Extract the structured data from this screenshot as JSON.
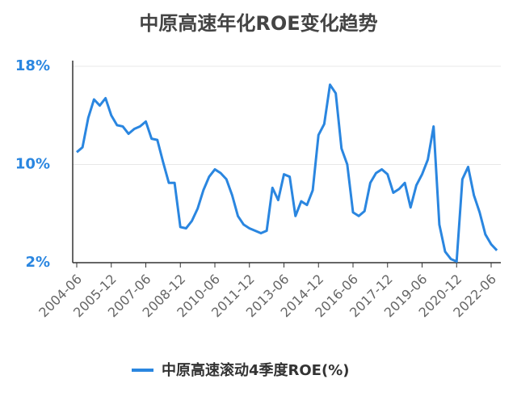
{
  "chart_data": {
    "type": "line",
    "title": "中原高速年化ROE变化趋势",
    "categories": [
      "2004-06",
      null,
      null,
      null,
      null,
      null,
      "2005-12",
      null,
      null,
      null,
      null,
      null,
      "2007-06",
      null,
      null,
      null,
      null,
      null,
      "2008-12",
      null,
      null,
      null,
      null,
      null,
      "2010-06",
      null,
      null,
      null,
      null,
      null,
      "2011-12",
      null,
      null,
      null,
      null,
      null,
      "2013-06",
      null,
      null,
      null,
      null,
      null,
      "2014-12",
      null,
      null,
      null,
      null,
      null,
      "2016-06",
      null,
      null,
      null,
      null,
      null,
      "2017-12",
      null,
      null,
      null,
      null,
      null,
      "2019-06",
      null,
      null,
      null,
      null,
      null,
      "2020-12",
      null,
      null,
      null,
      null,
      null,
      "2022-06",
      null
    ],
    "series": [
      {
        "name": "中原高速滚动4季度ROE(%)",
        "color": "#2a86e0",
        "values": [
          11.0,
          11.4,
          13.8,
          15.3,
          14.8,
          15.4,
          14.0,
          13.2,
          13.1,
          12.5,
          12.9,
          13.1,
          13.5,
          12.1,
          12.0,
          10.2,
          8.5,
          8.5,
          4.9,
          4.8,
          5.4,
          6.4,
          7.9,
          9.0,
          9.6,
          9.3,
          8.8,
          7.5,
          5.8,
          5.1,
          4.8,
          4.6,
          4.4,
          4.6,
          8.1,
          7.1,
          9.2,
          9.0,
          5.8,
          7.0,
          6.7,
          7.9,
          12.4,
          13.3,
          16.5,
          15.8,
          11.3,
          10.0,
          6.1,
          5.8,
          6.2,
          8.5,
          9.3,
          9.6,
          9.2,
          7.7,
          8.0,
          8.5,
          6.5,
          8.3,
          9.2,
          10.4,
          13.1,
          5.1,
          2.9,
          2.3,
          2.1,
          8.8,
          9.8,
          7.5,
          6.1,
          4.3,
          3.5,
          3.0
        ]
      }
    ],
    "ylim": [
      2,
      18
    ],
    "yticks": [
      {
        "value": 2,
        "label": "2%"
      },
      {
        "value": 10,
        "label": "10%"
      },
      {
        "value": 18,
        "label": "18%"
      }
    ],
    "grid": true
  }
}
